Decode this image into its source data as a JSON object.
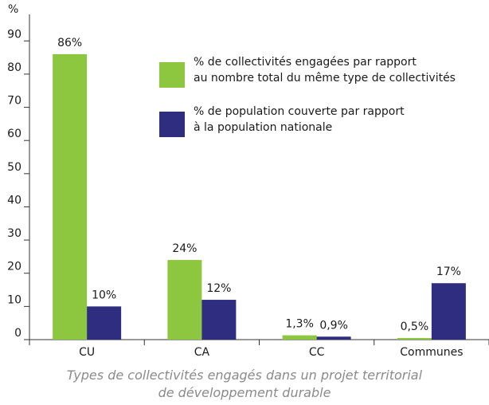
{
  "chart_data": {
    "type": "bar",
    "y_label": "%",
    "x_label": "Types de collectivités engagés dans un projet territorial\nde développement durable",
    "categories": [
      "CU",
      "CA",
      "CC",
      "Communes"
    ],
    "series": [
      {
        "name": "% de collectivités engagées par rapport\n au nombre total du même type de collectivités",
        "color": "#8dc63f",
        "values": [
          86,
          24,
          1.3,
          0.5
        ],
        "value_labels": [
          "86%",
          "24%",
          "1,3%",
          "0,5%"
        ]
      },
      {
        "name": "% de population couverte par rapport\nà la population nationale",
        "color": "#2e2d7f",
        "values": [
          10,
          12,
          0.9,
          17
        ],
        "value_labels": [
          "10%",
          "12%",
          "0,9%",
          "17%"
        ]
      }
    ],
    "ylim": [
      0,
      98
    ],
    "yticks": [
      0,
      10,
      20,
      30,
      40,
      50,
      60,
      70,
      80,
      90
    ]
  }
}
